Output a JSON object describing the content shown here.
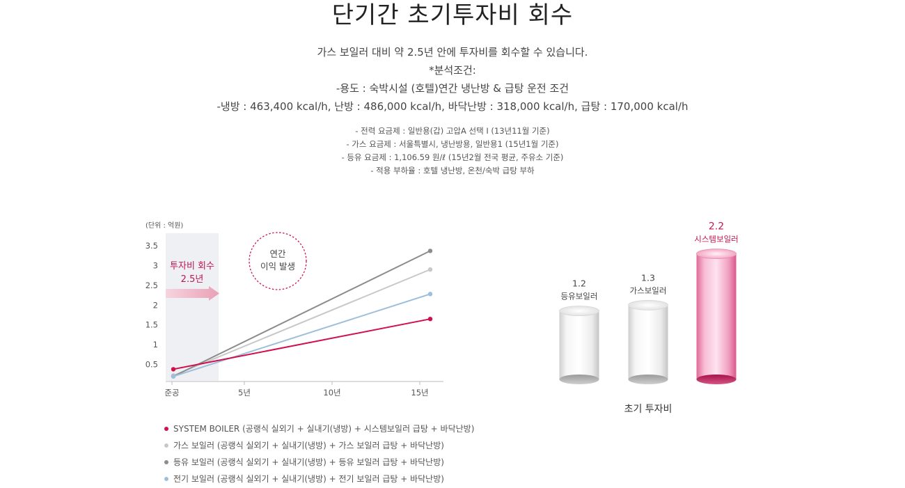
{
  "header": {
    "title": "단기간 초기투자비 회수",
    "lines": [
      "가스 보일러 대비 약 2.5년 안에 투자비를 회수할 수 있습니다.",
      "*분석조건:",
      "-용도 : 숙박시설 (호텔)연간 냉난방 & 급탕 운전 조건",
      "-냉방 : 463,400 kcal/h, 난방 : 486,000 kcal/h, 바닥난방 : 318,000 kcal/h, 급탕 : 170,000 kcal/h"
    ],
    "notes": [
      "- 전력 요금제 : 일반용(갑) 고압A 선택 I (13년11월 기준)",
      "- 가스 요금제 : 서울특별시, 냉난방용, 일반용1 (15년1월 기준)",
      "- 등유 요금제 : 1,106.59 원/ℓ (15년2월 전국 평균, 주유소 기준)",
      "- 적용 부하율 : 호텔 냉난방, 온천/숙박 급탕 부하"
    ]
  },
  "chart_data": [
    {
      "type": "line",
      "unit_label": "(단위 : 억원)",
      "x_categories": [
        "준공",
        "5년",
        "10년",
        "15년"
      ],
      "x_range": [
        0,
        15
      ],
      "yticks": [
        "0.5",
        "1",
        "1.5",
        "2",
        "2.5",
        "3",
        "3.5"
      ],
      "ylim": [
        0,
        3.5
      ],
      "series": [
        {
          "name": "SYSTEM BOILER (공랭식 실외기 + 실내기(냉방) + 시스템보일러 급탕 + 바닥난방)",
          "color": "#d0104c",
          "points": [
            [
              0,
              0.38
            ],
            [
              15,
              1.65
            ]
          ]
        },
        {
          "name": "가스 보일러 (공랭식 실외기 + 실내기(냉방) + 가스 보일러 급탕 + 바닥난방)",
          "color": "#c8c8c8",
          "points": [
            [
              0,
              0.22
            ],
            [
              15,
              2.9
            ]
          ]
        },
        {
          "name": "등유 보일러 (공랭식 실외기 + 실내기(냉방) + 등유 보일러 급탕 + 바닥난방)",
          "color": "#8c8c8c",
          "points": [
            [
              0,
              0.2
            ],
            [
              15,
              3.37
            ]
          ]
        },
        {
          "name": "전기 보일러 (공랭식 실외기 + 실내기(냉방) + 전기 보일러 급탕 + 바닥난방)",
          "color": "#9dbfdc",
          "points": [
            [
              0,
              0.2
            ],
            [
              15,
              2.28
            ]
          ]
        }
      ],
      "payback": {
        "label_line1": "투자비 회수",
        "label_line2": "2.5년",
        "years": 2.5
      },
      "annotation": {
        "line1": "연간",
        "line2": "이익 발생"
      }
    },
    {
      "type": "bar",
      "xlabel": "초기 투자비",
      "categories": [
        "등유보일러",
        "가스보일러",
        "시스템보일러"
      ],
      "values": [
        1.2,
        1.3,
        2.2
      ],
      "value_labels": [
        "1.2",
        "1.3",
        "2.2"
      ],
      "highlight_color": "#c0144e"
    }
  ]
}
